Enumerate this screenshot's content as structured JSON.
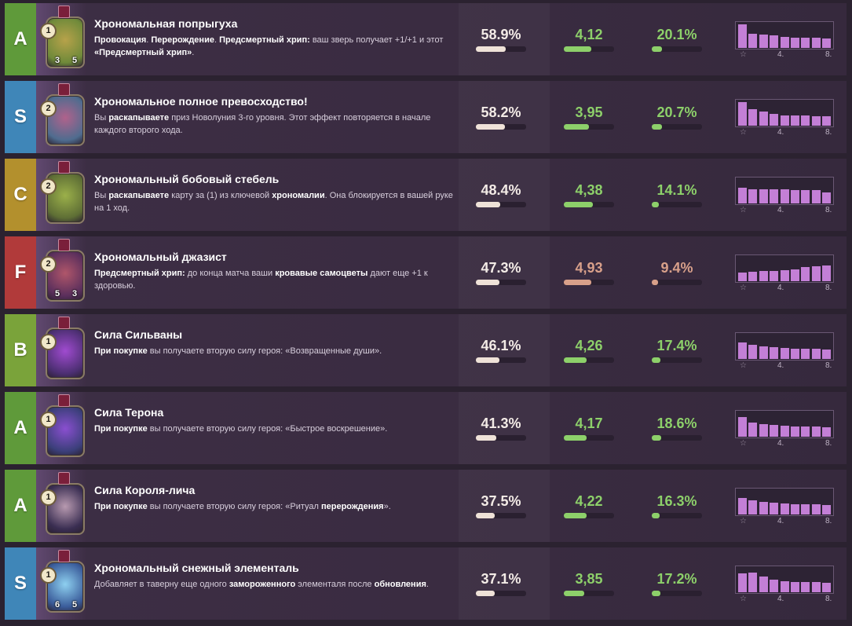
{
  "colors": {
    "tier_A": "#5f9a3a",
    "tier_S": "#3f86b8",
    "tier_C": "#b3902d",
    "tier_F": "#b13a3a",
    "tier_B": "#7aa33a",
    "good": "#8dd06a",
    "bad": "#d8a08a",
    "hist": "#c37fd6"
  },
  "rows": [
    {
      "tier": "A",
      "name": "Хрономальная попрыгуха",
      "desc": [
        {
          "t": "Провокация",
          "b": true
        },
        {
          "t": ". ",
          "b": false
        },
        {
          "t": "Перерождение",
          "b": true
        },
        {
          "t": ". ",
          "b": false
        },
        {
          "t": "Предсмертный хрип:",
          "b": true
        },
        {
          "t": " ваш зверь получает +1/+1 и этот ",
          "b": false
        },
        {
          "t": "«Предсмертный хрип»",
          "b": true
        },
        {
          "t": ".",
          "b": false
        }
      ],
      "card": {
        "cost": "1",
        "attack": "3",
        "health": "5",
        "icon": "frog-creature-art"
      },
      "winrate": "58.9%",
      "winrate_pct": 58.9,
      "place": "4,12",
      "place_frac": 0.55,
      "pick": "20.1%",
      "pick_pct": 20.1,
      "quality": "good",
      "hist": [
        0.95,
        0.55,
        0.52,
        0.5,
        0.45,
        0.42,
        0.42,
        0.4,
        0.38
      ],
      "hist_axis": [
        "☆",
        "4.",
        "8."
      ]
    },
    {
      "tier": "S",
      "name": "Хрономальное полное превосходство!",
      "desc": [
        {
          "t": "Вы ",
          "b": false
        },
        {
          "t": "раскапываете",
          "b": true
        },
        {
          "t": " приз Новолуния 3-го уровня. Этот эффект повторяется в начале каждого второго хода.",
          "b": false
        }
      ],
      "card": {
        "cost": "2",
        "attack": "",
        "health": "",
        "icon": "skull-spell-art"
      },
      "winrate": "58.2%",
      "winrate_pct": 58.2,
      "place": "3,95",
      "place_frac": 0.5,
      "pick": "20.7%",
      "pick_pct": 20.7,
      "quality": "good",
      "hist": [
        0.95,
        0.65,
        0.55,
        0.48,
        0.42,
        0.4,
        0.4,
        0.38,
        0.36
      ],
      "hist_axis": [
        "☆",
        "4.",
        "8."
      ]
    },
    {
      "tier": "C",
      "name": "Хрономальный бобовый стебель",
      "desc": [
        {
          "t": "Вы ",
          "b": false
        },
        {
          "t": "раскапываете",
          "b": true
        },
        {
          "t": " карту за (1) из ключевой ",
          "b": false
        },
        {
          "t": "хрономалии",
          "b": true
        },
        {
          "t": ". Она блокируется в вашей руке на 1 ход.",
          "b": false
        }
      ],
      "card": {
        "cost": "2",
        "attack": "",
        "health": "",
        "icon": "beanstalk-spell-art"
      },
      "winrate": "48.4%",
      "winrate_pct": 48.4,
      "place": "4,38",
      "place_frac": 0.58,
      "pick": "14.1%",
      "pick_pct": 14.1,
      "quality": "good",
      "hist": [
        0.62,
        0.55,
        0.55,
        0.55,
        0.55,
        0.52,
        0.52,
        0.52,
        0.45
      ],
      "hist_axis": [
        "☆",
        "4.",
        "8."
      ]
    },
    {
      "tier": "F",
      "name": "Хрономальный джазист",
      "desc": [
        {
          "t": "Предсмертный хрип:",
          "b": true
        },
        {
          "t": " до конца матча ваши ",
          "b": false
        },
        {
          "t": "кровавые самоцветы",
          "b": true
        },
        {
          "t": " дают еще +1 к здоровью.",
          "b": false
        }
      ],
      "card": {
        "cost": "2",
        "attack": "5",
        "health": "3",
        "icon": "jazz-creature-art"
      },
      "winrate": "47.3%",
      "winrate_pct": 47.3,
      "place": "4,93",
      "place_frac": 0.55,
      "pick": "9.4%",
      "pick_pct": 9.4,
      "quality": "bad",
      "hist": [
        0.35,
        0.38,
        0.4,
        0.42,
        0.45,
        0.48,
        0.55,
        0.6,
        0.62
      ],
      "hist_axis": [
        "☆",
        "4.",
        "8."
      ]
    },
    {
      "tier": "B",
      "name": "Сила Сильваны",
      "desc": [
        {
          "t": "При покупке",
          "b": true
        },
        {
          "t": " вы получаете вторую силу героя: «Возвращенные души».",
          "b": false
        }
      ],
      "card": {
        "cost": "1",
        "attack": "",
        "health": "",
        "icon": "purple-crystal-art"
      },
      "winrate": "46.1%",
      "winrate_pct": 46.1,
      "place": "4,26",
      "place_frac": 0.45,
      "pick": "17.4%",
      "pick_pct": 17.4,
      "quality": "good",
      "hist": [
        0.65,
        0.55,
        0.5,
        0.48,
        0.45,
        0.42,
        0.42,
        0.4,
        0.36
      ],
      "hist_axis": [
        "☆",
        "4.",
        "8."
      ]
    },
    {
      "tier": "A",
      "name": "Сила Терона",
      "desc": [
        {
          "t": "При покупке",
          "b": true
        },
        {
          "t": " вы получаете вторую силу героя: «Быстрое воскрешение».",
          "b": false
        }
      ],
      "card": {
        "cost": "1",
        "attack": "",
        "health": "",
        "icon": "violet-claw-art"
      },
      "winrate": "41.3%",
      "winrate_pct": 41.3,
      "place": "4,17",
      "place_frac": 0.45,
      "pick": "18.6%",
      "pick_pct": 18.6,
      "quality": "good",
      "hist": [
        0.78,
        0.55,
        0.5,
        0.48,
        0.45,
        0.42,
        0.42,
        0.4,
        0.38
      ],
      "hist_axis": [
        "☆",
        "4.",
        "8."
      ]
    },
    {
      "tier": "A",
      "name": "Сила Короля-лича",
      "desc": [
        {
          "t": "При покупке",
          "b": true
        },
        {
          "t": " вы получаете вторую силу героя: «Ритуал ",
          "b": false
        },
        {
          "t": "перерождения",
          "b": true
        },
        {
          "t": "».",
          "b": false
        }
      ],
      "card": {
        "cost": "1",
        "attack": "",
        "health": "",
        "icon": "lich-king-art"
      },
      "winrate": "37.5%",
      "winrate_pct": 37.5,
      "place": "4,22",
      "place_frac": 0.45,
      "pick": "16.3%",
      "pick_pct": 16.3,
      "quality": "good",
      "hist": [
        0.65,
        0.55,
        0.5,
        0.48,
        0.45,
        0.42,
        0.42,
        0.4,
        0.38
      ],
      "hist_axis": [
        "☆",
        "4.",
        "8."
      ]
    },
    {
      "tier": "S",
      "name": "Хрономальный снежный элементаль",
      "desc": [
        {
          "t": "Добавляет в таверну еще одного ",
          "b": false
        },
        {
          "t": "замороженного",
          "b": true
        },
        {
          "t": " элементаля после ",
          "b": false
        },
        {
          "t": "обновления",
          "b": true
        },
        {
          "t": ".",
          "b": false
        }
      ],
      "card": {
        "cost": "1",
        "attack": "6",
        "health": "5",
        "icon": "snow-elemental-art"
      },
      "winrate": "37.1%",
      "winrate_pct": 37.1,
      "place": "3,85",
      "place_frac": 0.4,
      "pick": "17.2%",
      "pick_pct": 17.2,
      "quality": "good",
      "hist": [
        0.75,
        0.78,
        0.62,
        0.5,
        0.45,
        0.42,
        0.42,
        0.4,
        0.36
      ],
      "hist_axis": [
        "☆",
        "4.",
        "8."
      ]
    }
  ]
}
